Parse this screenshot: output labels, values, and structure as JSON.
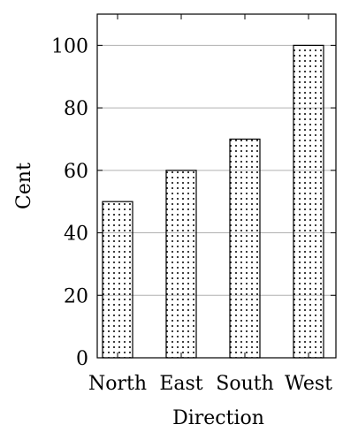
{
  "chart_data": {
    "type": "bar",
    "categories": [
      "North",
      "East",
      "South",
      "West"
    ],
    "values": [
      50,
      60,
      70,
      100
    ],
    "title": "",
    "xlabel": "Direction",
    "ylabel": "Cent",
    "ylim": [
      0,
      110
    ],
    "yticks": [
      0,
      20,
      40,
      60,
      80,
      100
    ],
    "grid": "horizontal",
    "bar_fill": "dotted pattern"
  }
}
